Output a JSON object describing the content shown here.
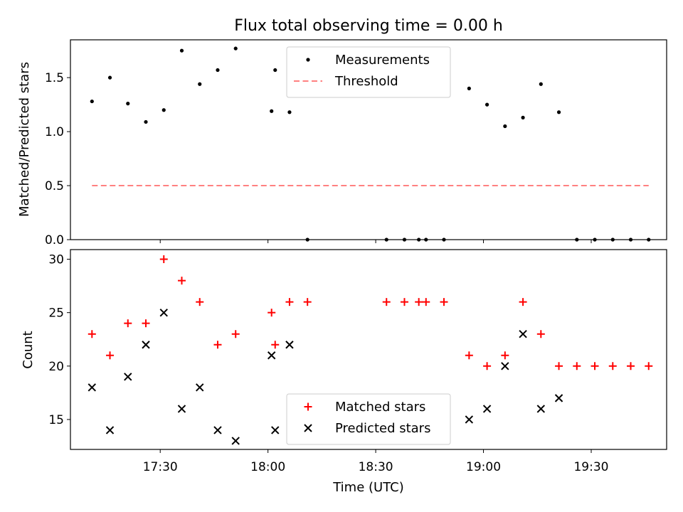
{
  "chart_data": [
    {
      "type": "scatter",
      "title": "Flux total observing time = 0.00 h",
      "xlabel": "",
      "ylabel": "Matched/Predicted stars",
      "xlim": [
        "17:05",
        "19:51"
      ],
      "ylim": [
        0.0,
        1.85
      ],
      "y_ticks": [
        "0.0",
        "0.5",
        "1.0",
        "1.5"
      ],
      "legend_position": "upper-center",
      "grid": false,
      "series": [
        {
          "name": "Measurements",
          "style": "dot",
          "color": "#000000",
          "points": [
            {
              "x": "17:11",
              "y": 1.28
            },
            {
              "x": "17:16",
              "y": 1.5
            },
            {
              "x": "17:21",
              "y": 1.26
            },
            {
              "x": "17:26",
              "y": 1.09
            },
            {
              "x": "17:31",
              "y": 1.2
            },
            {
              "x": "17:36",
              "y": 1.75
            },
            {
              "x": "17:41",
              "y": 1.44
            },
            {
              "x": "17:46",
              "y": 1.57
            },
            {
              "x": "17:51",
              "y": 1.77
            },
            {
              "x": "18:01",
              "y": 1.19
            },
            {
              "x": "18:02",
              "y": 1.57
            },
            {
              "x": "18:06",
              "y": 1.18
            },
            {
              "x": "18:11",
              "y": 0.0
            },
            {
              "x": "18:33",
              "y": 0.0
            },
            {
              "x": "18:38",
              "y": 0.0
            },
            {
              "x": "18:42",
              "y": 0.0
            },
            {
              "x": "18:44",
              "y": 0.0
            },
            {
              "x": "18:49",
              "y": 0.0
            },
            {
              "x": "18:56",
              "y": 1.4
            },
            {
              "x": "19:01",
              "y": 1.25
            },
            {
              "x": "19:06",
              "y": 1.05
            },
            {
              "x": "19:11",
              "y": 1.13
            },
            {
              "x": "19:16",
              "y": 1.44
            },
            {
              "x": "19:21",
              "y": 1.18
            },
            {
              "x": "19:26",
              "y": 0.0
            },
            {
              "x": "19:31",
              "y": 0.0
            },
            {
              "x": "19:36",
              "y": 0.0
            },
            {
              "x": "19:41",
              "y": 0.0
            },
            {
              "x": "19:46",
              "y": 0.0
            }
          ]
        },
        {
          "name": "Threshold",
          "style": "dashed-line",
          "color": "#ff8080",
          "points": [
            {
              "x": "17:11",
              "y": 0.5
            },
            {
              "x": "19:46",
              "y": 0.5
            }
          ]
        }
      ]
    },
    {
      "type": "scatter",
      "title": "",
      "xlabel": "Time (UTC)",
      "ylabel": "Count",
      "xlim": [
        "17:05",
        "19:51"
      ],
      "ylim": [
        12.2,
        30.9
      ],
      "x_ticks": [
        "17:30",
        "18:00",
        "18:30",
        "19:00",
        "19:30"
      ],
      "y_ticks": [
        "15",
        "20",
        "25",
        "30"
      ],
      "legend_position": "lower-center",
      "grid": false,
      "series": [
        {
          "name": "Matched stars",
          "style": "plus",
          "color": "#ff0000",
          "points": [
            {
              "x": "17:11",
              "y": 23
            },
            {
              "x": "17:16",
              "y": 21
            },
            {
              "x": "17:21",
              "y": 24
            },
            {
              "x": "17:26",
              "y": 24
            },
            {
              "x": "17:31",
              "y": 30
            },
            {
              "x": "17:36",
              "y": 28
            },
            {
              "x": "17:41",
              "y": 26
            },
            {
              "x": "17:46",
              "y": 22
            },
            {
              "x": "17:51",
              "y": 23
            },
            {
              "x": "18:01",
              "y": 25
            },
            {
              "x": "18:02",
              "y": 22
            },
            {
              "x": "18:06",
              "y": 26
            },
            {
              "x": "18:11",
              "y": 26
            },
            {
              "x": "18:33",
              "y": 26
            },
            {
              "x": "18:38",
              "y": 26
            },
            {
              "x": "18:42",
              "y": 26
            },
            {
              "x": "18:44",
              "y": 26
            },
            {
              "x": "18:49",
              "y": 26
            },
            {
              "x": "18:56",
              "y": 21
            },
            {
              "x": "19:01",
              "y": 20
            },
            {
              "x": "19:06",
              "y": 21
            },
            {
              "x": "19:11",
              "y": 26
            },
            {
              "x": "19:16",
              "y": 23
            },
            {
              "x": "19:21",
              "y": 20
            },
            {
              "x": "19:26",
              "y": 20
            },
            {
              "x": "19:31",
              "y": 20
            },
            {
              "x": "19:36",
              "y": 20
            },
            {
              "x": "19:41",
              "y": 20
            },
            {
              "x": "19:46",
              "y": 20
            }
          ]
        },
        {
          "name": "Predicted stars",
          "style": "x",
          "color": "#000000",
          "points": [
            {
              "x": "17:11",
              "y": 18
            },
            {
              "x": "17:16",
              "y": 14
            },
            {
              "x": "17:21",
              "y": 19
            },
            {
              "x": "17:26",
              "y": 22
            },
            {
              "x": "17:31",
              "y": 25
            },
            {
              "x": "17:36",
              "y": 16
            },
            {
              "x": "17:41",
              "y": 18
            },
            {
              "x": "17:46",
              "y": 14
            },
            {
              "x": "17:51",
              "y": 13
            },
            {
              "x": "18:01",
              "y": 21
            },
            {
              "x": "18:02",
              "y": 14
            },
            {
              "x": "18:06",
              "y": 22
            },
            {
              "x": "18:56",
              "y": 15
            },
            {
              "x": "19:01",
              "y": 16
            },
            {
              "x": "19:06",
              "y": 20
            },
            {
              "x": "19:11",
              "y": 23
            },
            {
              "x": "19:16",
              "y": 16
            },
            {
              "x": "19:21",
              "y": 17
            }
          ]
        }
      ]
    }
  ]
}
